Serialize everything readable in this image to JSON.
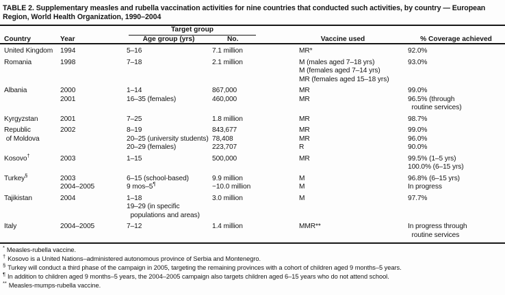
{
  "title": "TABLE 2. Supplementary measles and rubella vaccination activities for nine countries that conducted such activities, by country — European Region, World Health Organization, 1990–2004",
  "table": {
    "header": {
      "spanner": "Target group",
      "columns": [
        "Country",
        "Year",
        "Age group (yrs)",
        "No.",
        "Vaccine used",
        "% Coverage achieved"
      ]
    },
    "rows": [
      {
        "country": [
          "United Kingdom"
        ],
        "year": [
          "1994"
        ],
        "age_group": [
          "5–16"
        ],
        "number": [
          "7.1 million"
        ],
        "vaccine": [
          "MR*"
        ],
        "coverage": [
          "92.0%"
        ]
      },
      {
        "country": [
          "Romania"
        ],
        "year": [
          "1998"
        ],
        "age_group": [
          "7–18"
        ],
        "number": [
          "2.1 million"
        ],
        "vaccine": [
          "M (males aged 7–18 yrs)",
          "M (females aged 7–14 yrs)",
          "MR (females aged 15–18 yrs)"
        ],
        "coverage": [
          "93.0%"
        ]
      },
      {
        "country": [
          "Albania"
        ],
        "year": [
          "2000",
          "2001"
        ],
        "age_group": [
          "1–14",
          "16–35 (females)"
        ],
        "number": [
          "867,000",
          "460,000"
        ],
        "vaccine": [
          "MR",
          "MR"
        ],
        "coverage": [
          "99.0%",
          "96.5% (through",
          "  routine services)"
        ]
      },
      {
        "country": [
          "Kyrgyzstan"
        ],
        "year": [
          "2001"
        ],
        "age_group": [
          "7–25"
        ],
        "number": [
          "1.8 million"
        ],
        "vaccine": [
          "MR"
        ],
        "coverage": [
          "98.7%"
        ]
      },
      {
        "country": [
          "Republic",
          " of Moldova"
        ],
        "year": [
          "2002"
        ],
        "age_group": [
          "8–19",
          "20–25 (university students)",
          "20–29 (females)"
        ],
        "number": [
          "843,677",
          "78,408",
          "223,707"
        ],
        "vaccine": [
          "MR",
          "MR",
          "R"
        ],
        "coverage": [
          "99.0%",
          "96.0%",
          "90.0%"
        ]
      },
      {
        "country": [
          "Kosovo{†}"
        ],
        "year": [
          "2003"
        ],
        "age_group": [
          "1–15"
        ],
        "number": [
          "500,000"
        ],
        "vaccine": [
          "MR"
        ],
        "coverage": [
          "99.5% (1–5 yrs)",
          "100.0% (6–15 yrs)"
        ]
      },
      {
        "country": [
          "Turkey{§}"
        ],
        "year": [
          "2003",
          "2004–2005"
        ],
        "age_group": [
          "6–15 (school-based)",
          "9 mos–5{¶}"
        ],
        "number": [
          "9.9 million",
          "~10.0 million"
        ],
        "vaccine": [
          "M",
          "M"
        ],
        "coverage": [
          "96.8% (6–15 yrs)",
          "In progress"
        ]
      },
      {
        "country": [
          "Tajikistan"
        ],
        "year": [
          "2004"
        ],
        "age_group": [
          "1–18",
          "19–29 (in specific",
          "  populations and areas)"
        ],
        "number": [
          "3.0 million"
        ],
        "vaccine": [
          "M"
        ],
        "coverage": [
          "97.7%"
        ]
      },
      {
        "country": [
          "Italy"
        ],
        "year": [
          "2004–2005"
        ],
        "age_group": [
          "7–12"
        ],
        "number": [
          "1.4 million"
        ],
        "vaccine": [
          "MMR**"
        ],
        "coverage": [
          "In progress through",
          "  routine services"
        ]
      }
    ]
  },
  "footnotes": [
    {
      "marker": "*",
      "text": "Measles-rubella vaccine."
    },
    {
      "marker": "†",
      "text": "Kosovo is a United Nations–administered autonomous province of Serbia and Montenegro."
    },
    {
      "marker": "§",
      "text": "Turkey will conduct a third phase of the campaign in 2005, targeting the remaining provinces with a cohort of children aged 9 months–5 years."
    },
    {
      "marker": "¶",
      "text": "In addition to children aged 9 months–5 years, the 2004–2005 campaign also targets children aged 6–15 years who do not attend school."
    },
    {
      "marker": "**",
      "text": "Measles-mumps-rubella vaccine."
    }
  ]
}
